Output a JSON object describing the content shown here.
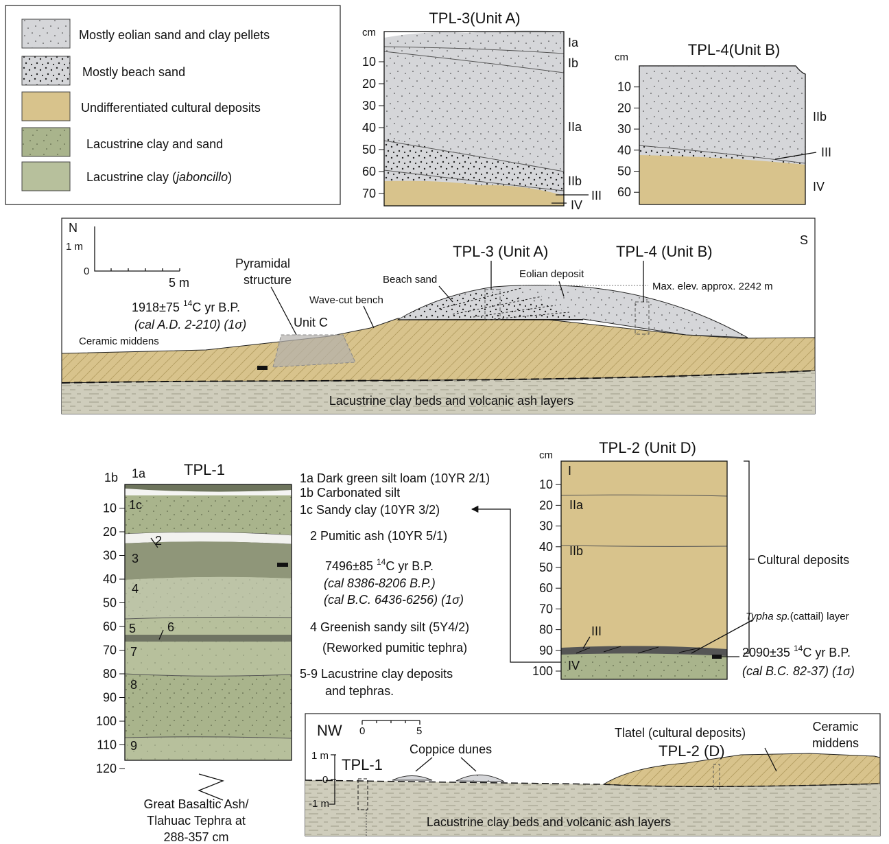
{
  "legend": {
    "items": [
      {
        "label": "Mostly eolian sand and clay pellets"
      },
      {
        "label": "Mostly beach sand"
      },
      {
        "label": "Undifferentiated cultural deposits"
      },
      {
        "label": "Lacustrine clay and sand"
      },
      {
        "label_parts": [
          "Lacustrine clay (",
          "jaboncillo",
          ")"
        ]
      }
    ]
  },
  "tpl3": {
    "title": "TPL-3(Unit A)",
    "unit": "cm",
    "depth_ticks": [
      10,
      20,
      30,
      40,
      50,
      60,
      70
    ],
    "layers": [
      "Ia",
      "Ib",
      "IIa",
      "IIb",
      "III",
      "IV"
    ]
  },
  "tpl4": {
    "title": "TPL-4(Unit B)",
    "unit": "cm",
    "depth_ticks": [
      10,
      20,
      30,
      40,
      50,
      60
    ],
    "layers": [
      "IIb",
      "III",
      "IV"
    ]
  },
  "cross_section": {
    "north": "N",
    "south": "S",
    "scale": {
      "vertical": "1 m",
      "zero": "0",
      "horizontal": "5 m"
    },
    "pyramid": [
      "Pyramidal",
      "structure"
    ],
    "unit_c": "Unit C",
    "date": {
      "value": "1918±75",
      "isotope": "14",
      "unit": "C yr B.P.",
      "cal": "(cal A.D. 2-210) (1σ)"
    },
    "ceramic_middens": "Ceramic middens",
    "wave_cut_bench": "Wave-cut bench",
    "beach_sand": "Beach sand",
    "tpl3": "TPL-3 (Unit A)",
    "tpl4": "TPL-4 (Unit B)",
    "eolian": "Eolian deposit",
    "max_elev": "Max. elev. approx. 2242 m",
    "base": "Lacustrine clay beds and volcanic ash layers"
  },
  "tpl1": {
    "title": "TPL-1",
    "depth_ticks": [
      10,
      20,
      30,
      40,
      50,
      60,
      70,
      80,
      90,
      100,
      110,
      120
    ],
    "layers": [
      "1a",
      "1b",
      "1c",
      "2",
      "3",
      "4",
      "5",
      "6",
      "7",
      "8",
      "9"
    ],
    "descriptions": [
      "1a Dark green silt loam (10YR 2/1)",
      "1b Carbonated silt",
      "1c Sandy clay (10YR 3/2)",
      "2 Pumitic ash (10YR 5/1)",
      "4 Greenish sandy silt (5Y4/2)",
      "(Reworked pumitic tephra)",
      "5-9 Lacustrine clay deposits",
      "and tephras."
    ],
    "date": {
      "value": "7496±85",
      "isotope": "14",
      "unit": "C yr B.P.",
      "cal": [
        "(cal 8386-8206 B.P.)",
        "(cal B.C. 6436-6256) (1σ)"
      ]
    },
    "basal_note": [
      "Great Basaltic Ash/",
      "Tlahuac Tephra at",
      "288-357 cm"
    ]
  },
  "tpl2": {
    "title": "TPL-2 (Unit D)",
    "unit": "cm",
    "depth_ticks": [
      10,
      20,
      30,
      40,
      50,
      60,
      70,
      80,
      90,
      100
    ],
    "layers": [
      "I",
      "IIa",
      "IIb",
      "III",
      "IV"
    ],
    "cultural": "Cultural deposits",
    "typha_parts": [
      "Typha sp.",
      "(cattail) layer"
    ],
    "date": {
      "value": "2090±35",
      "isotope": "14",
      "unit": "C yr B.P.",
      "cal": "(cal B.C. 82-37) (1σ)"
    }
  },
  "transect": {
    "nw": "NW",
    "scale": [
      "0",
      "5"
    ],
    "vertical": [
      "1 m",
      "0",
      "-1 m"
    ],
    "tpl1": "TPL-1",
    "coppice": "Coppice dunes",
    "tlatel": "Tlatel (cultural deposits)",
    "tpl2": "TPL-2 (D)",
    "middens": [
      "Ceramic",
      "middens"
    ],
    "base": "Lacustrine clay beds and volcanic ash layers"
  }
}
